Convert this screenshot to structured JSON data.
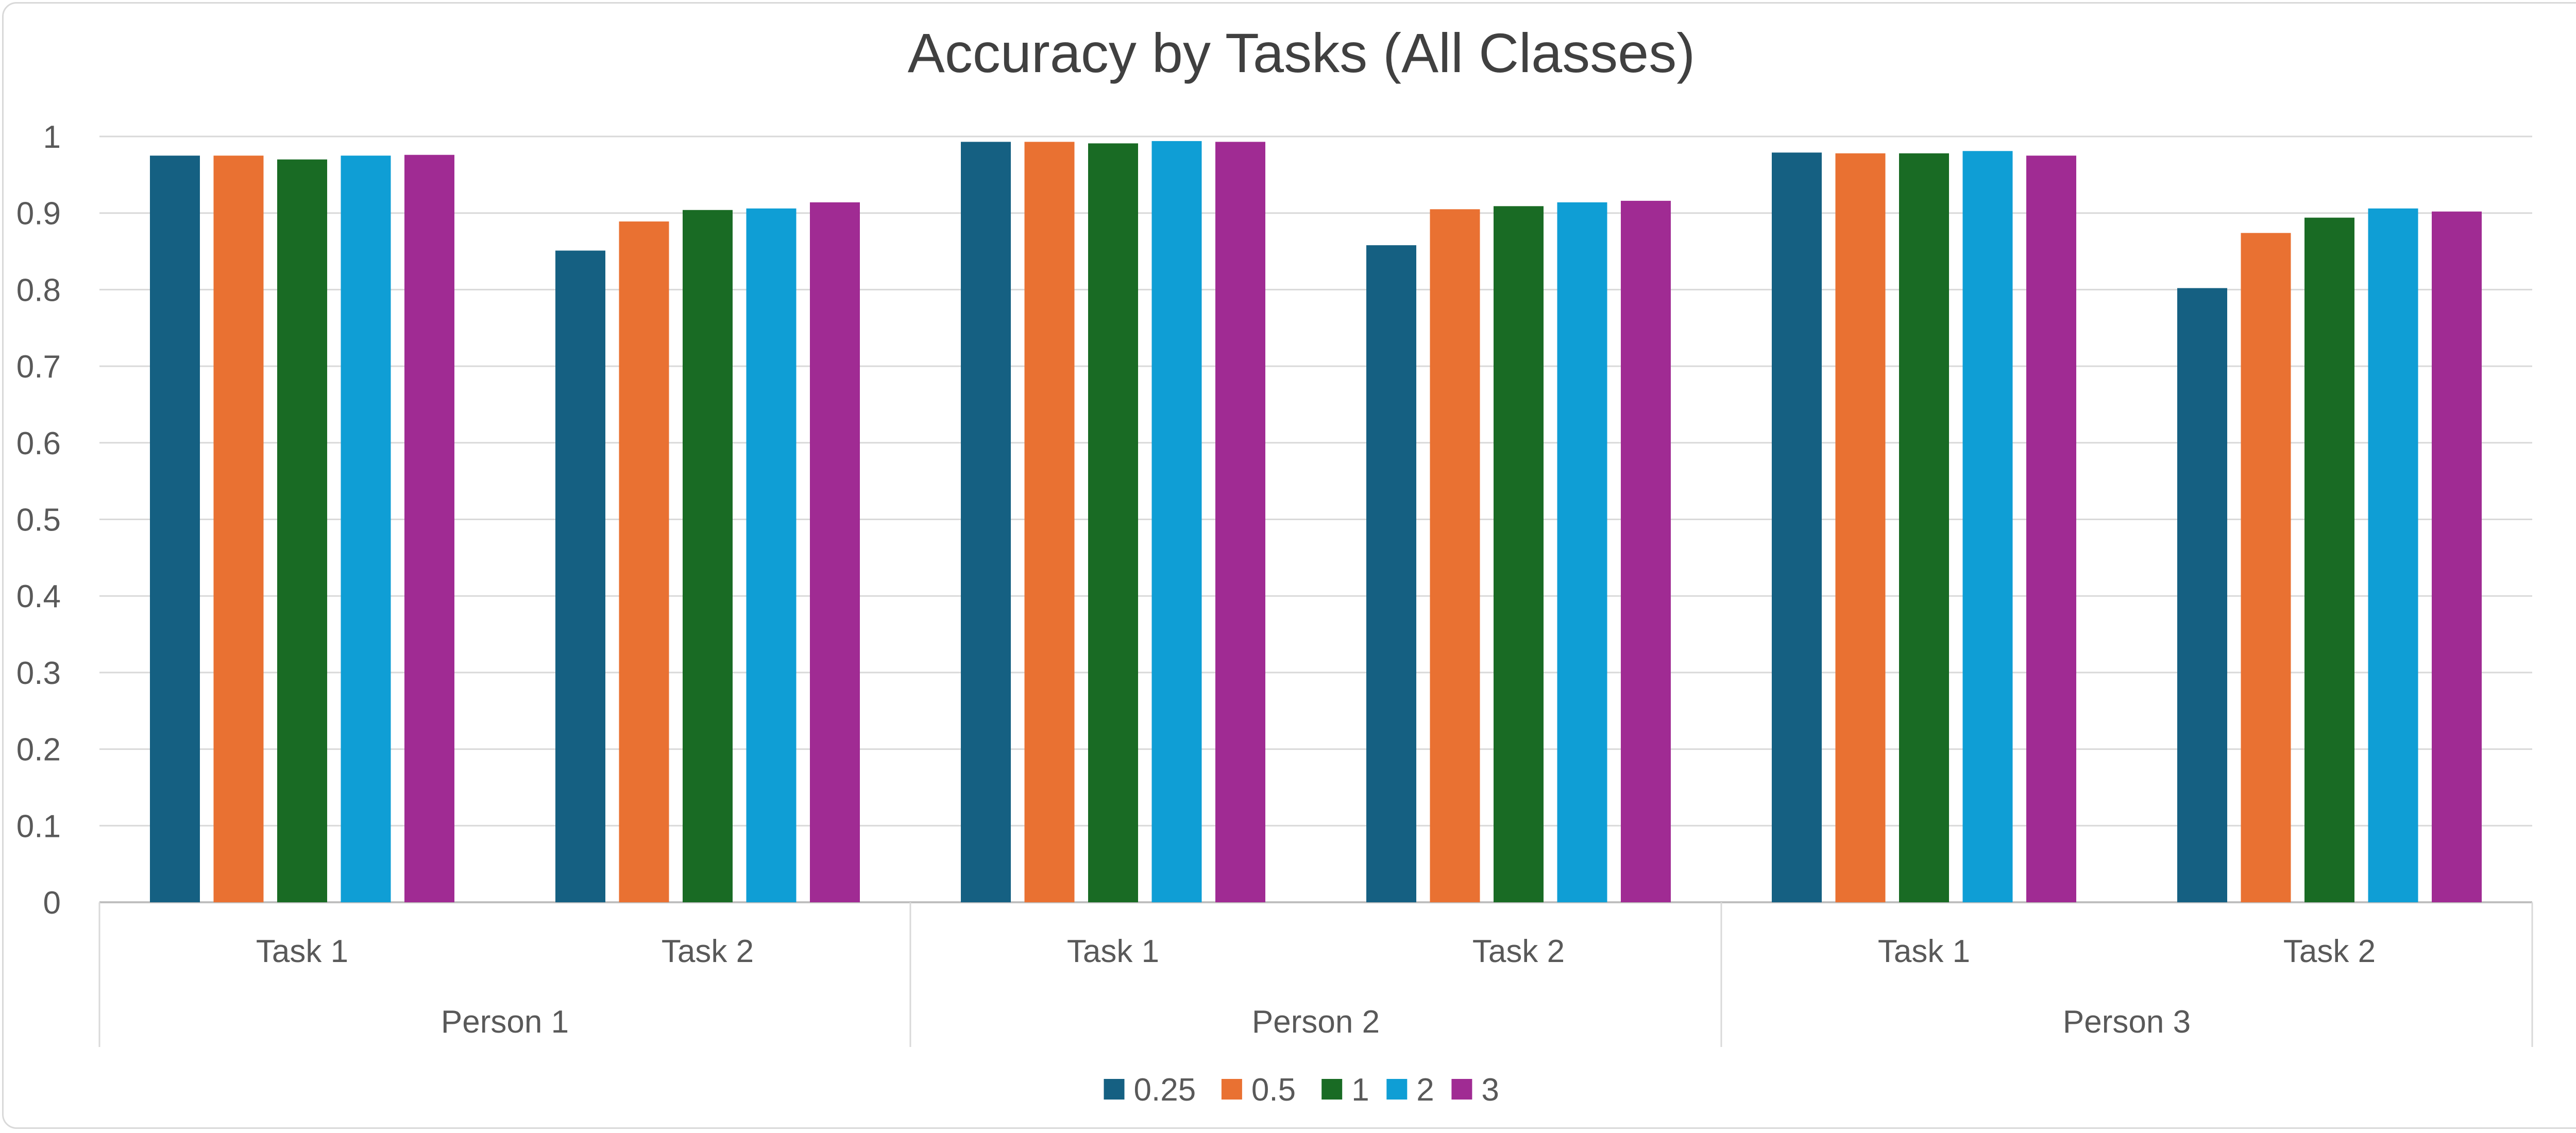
{
  "chart_data": {
    "type": "bar",
    "title": "Accuracy by Tasks (All Classes)",
    "xlabel": "",
    "ylabel": "",
    "ylim": [
      0,
      1
    ],
    "y_ticks": [
      "0",
      "0.1",
      "0.2",
      "0.3",
      "0.4",
      "0.5",
      "0.6",
      "0.7",
      "0.8",
      "0.9",
      "1"
    ],
    "grid": true,
    "legend_position": "bottom",
    "groups": [
      {
        "label": "Person 1",
        "categories": [
          "Task 1",
          "Task 2"
        ]
      },
      {
        "label": "Person 2",
        "categories": [
          "Task 1",
          "Task 2"
        ]
      },
      {
        "label": "Person 3",
        "categories": [
          "Task 1",
          "Task 2"
        ]
      }
    ],
    "series": [
      {
        "name": "0.25",
        "color": "#156082",
        "values": [
          0.975,
          0.851,
          0.993,
          0.858,
          0.979,
          0.802
        ]
      },
      {
        "name": "0.5",
        "color": "#E97132",
        "values": [
          0.975,
          0.889,
          0.993,
          0.905,
          0.978,
          0.874
        ]
      },
      {
        "name": "1",
        "color": "#196B24",
        "values": [
          0.97,
          0.904,
          0.991,
          0.909,
          0.978,
          0.894
        ]
      },
      {
        "name": "2",
        "color": "#0F9ED5",
        "values": [
          0.975,
          0.906,
          0.994,
          0.914,
          0.981,
          0.906
        ]
      },
      {
        "name": "3",
        "color": "#A02B93",
        "values": [
          0.976,
          0.914,
          0.993,
          0.916,
          0.975,
          0.902
        ]
      }
    ]
  }
}
